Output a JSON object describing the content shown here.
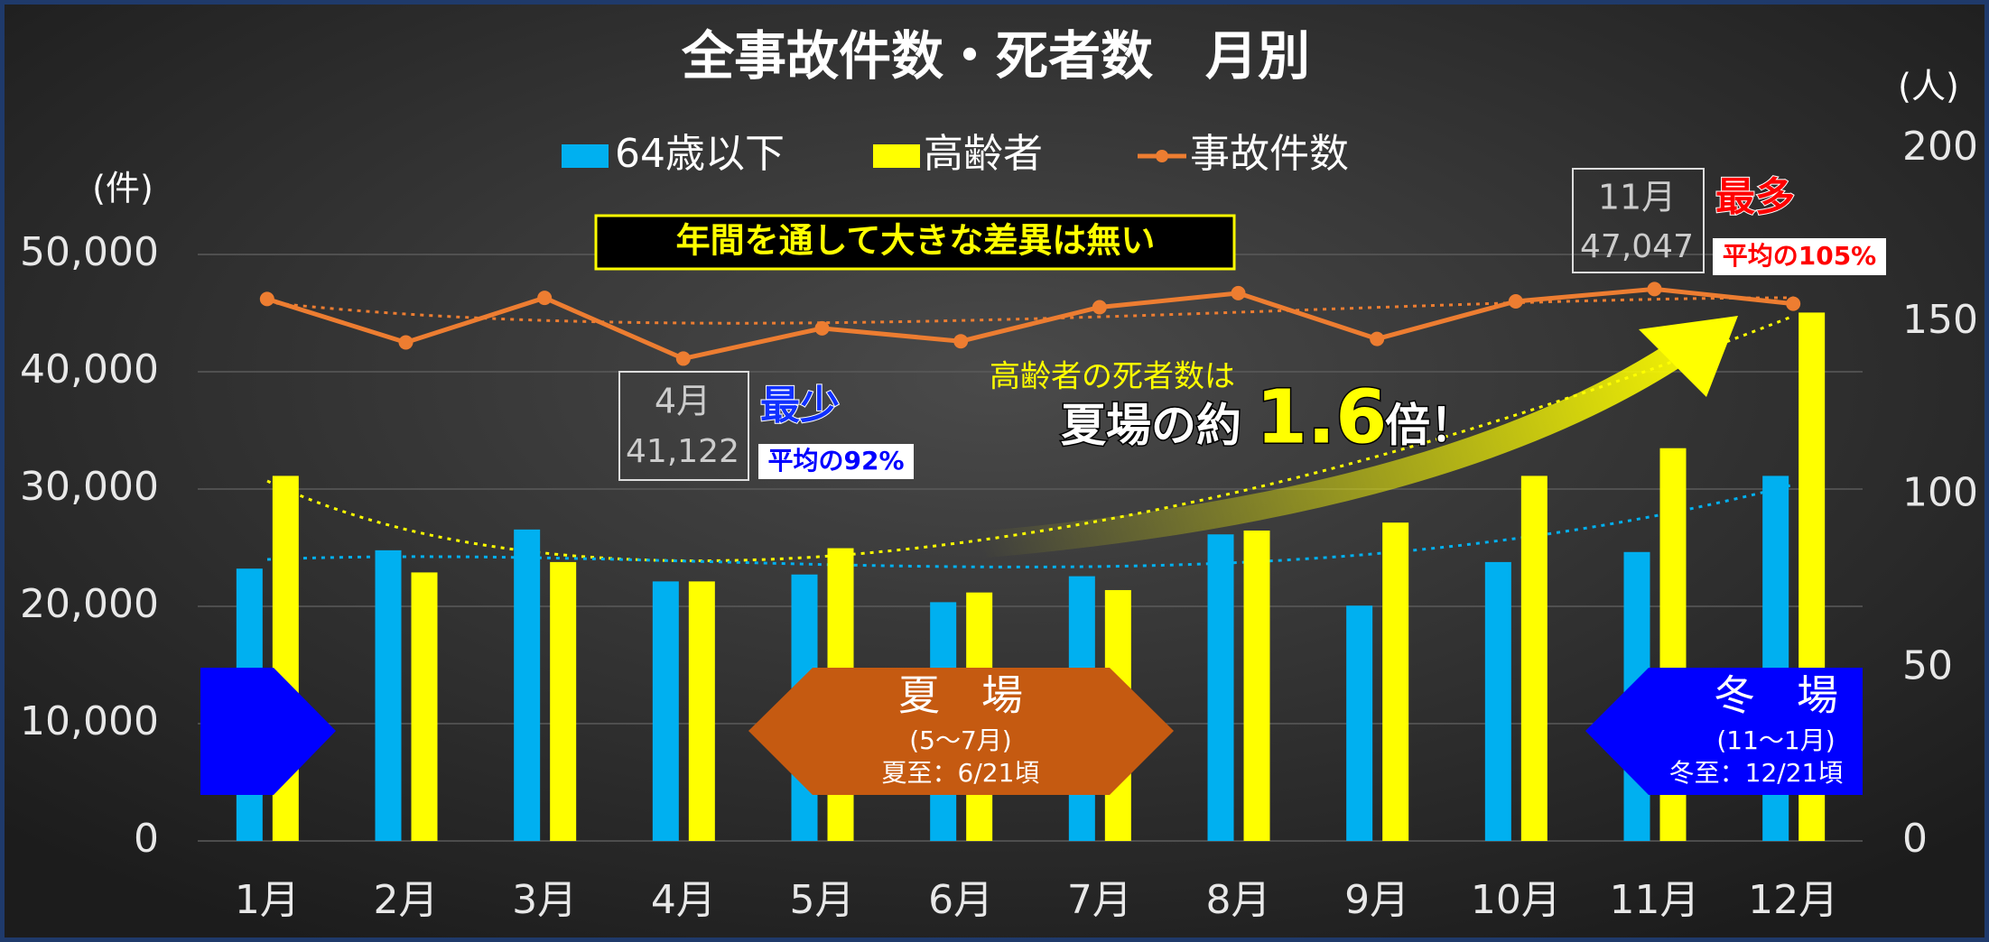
{
  "chart_data": {
    "type": "bar_line",
    "title": "全事故件数・死者数　月別",
    "ylabel": "(件)",
    "y2label": "(人)",
    "categories": [
      "1月",
      "2月",
      "3月",
      "4月",
      "5月",
      "6月",
      "7月",
      "8月",
      "9月",
      "10月",
      "11月",
      "12月"
    ],
    "series": [
      {
        "name": "64歳以下",
        "kind": "bar",
        "color": "#00b0f0",
        "axis": "y2",
        "values": [
          78.7,
          84,
          90,
          75,
          77,
          69,
          76.5,
          88.6,
          68,
          80.6,
          83.5,
          105.5
        ]
      },
      {
        "name": "高齢者",
        "kind": "bar",
        "color": "#ffff00",
        "axis": "y2",
        "values": [
          105.5,
          77.6,
          80.6,
          75,
          84.6,
          71.8,
          72.5,
          89.7,
          92,
          105.5,
          113.5,
          152.7
        ]
      },
      {
        "name": "事故件数",
        "kind": "line",
        "color": "#ed7d31",
        "values": [
          46200,
          42500,
          46300,
          41122,
          43700,
          42600,
          45500,
          46700,
          42800,
          46000,
          47047,
          45800
        ],
        "value_labels": [
          null,
          null,
          null,
          "41,122",
          null,
          null,
          null,
          null,
          null,
          null,
          "47,047",
          null
        ]
      }
    ],
    "ylim": [
      0,
      59000
    ],
    "yticks": [
      0,
      {
        "value": 10000,
        "label": "10,000"
      },
      {
        "value": 20000,
        "label": "20,000"
      },
      {
        "value": 30000,
        "label": "30,000"
      },
      {
        "value": 40000,
        "label": "40,000"
      },
      {
        "value": 50000,
        "label": "50,000"
      }
    ],
    "y2lim": [
      0,
      200
    ],
    "y2ticks": [
      0,
      50,
      100,
      150,
      200
    ],
    "grid": true,
    "annotations": {
      "no_difference": "年間を通して大きな差異は無い",
      "min": "最少",
      "min_ratio": "平均の92%",
      "max": "最多",
      "max_ratio": "平均の105%",
      "elderly_note": "高齢者の死者数は",
      "summer_of": "夏場の約",
      "factor": "1.6",
      "times": "倍！",
      "summer": "夏　場",
      "summer_months": "(5〜7月)",
      "summer_solstice": "夏至：6/21頃",
      "winter": "冬　場",
      "winter_months": "(11〜1月)",
      "winter_solstice": "冬至：12/21頃"
    }
  }
}
